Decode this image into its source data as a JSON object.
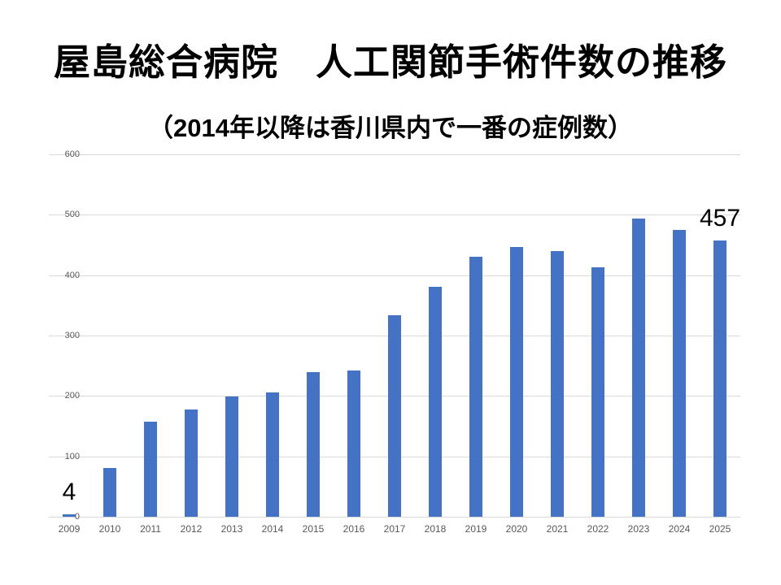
{
  "slide": {
    "title": "屋島総合病院　人工関節手術件数の推移",
    "subtitle": "（2014年以降は香川県内で一番の症例数）"
  },
  "chart_data": {
    "type": "bar",
    "title": "屋島総合病院　人工関節手術件数の推移",
    "subtitle": "（2014年以降は香川県内で一番の症例数）",
    "categories": [
      "2009",
      "2010",
      "2011",
      "2012",
      "2013",
      "2014",
      "2015",
      "2016",
      "2017",
      "2018",
      "2019",
      "2020",
      "2021",
      "2022",
      "2023",
      "2024",
      "2025"
    ],
    "values": [
      4,
      81,
      157,
      177,
      199,
      206,
      240,
      242,
      333,
      381,
      430,
      447,
      440,
      413,
      494,
      475,
      457
    ],
    "xlabel": "",
    "ylabel": "",
    "ylim": [
      0,
      600
    ],
    "y_ticks": [
      0,
      100,
      200,
      300,
      400,
      500,
      600
    ],
    "grid": true,
    "legend_position": "none",
    "bar_color": "#4472C4",
    "gridline_color": "#D9D9D9",
    "axis_label_color": "#595959",
    "data_label_color": "#000000",
    "data_labels": [
      {
        "index": 0,
        "text": "4"
      },
      {
        "index": 16,
        "text": "457"
      }
    ]
  }
}
